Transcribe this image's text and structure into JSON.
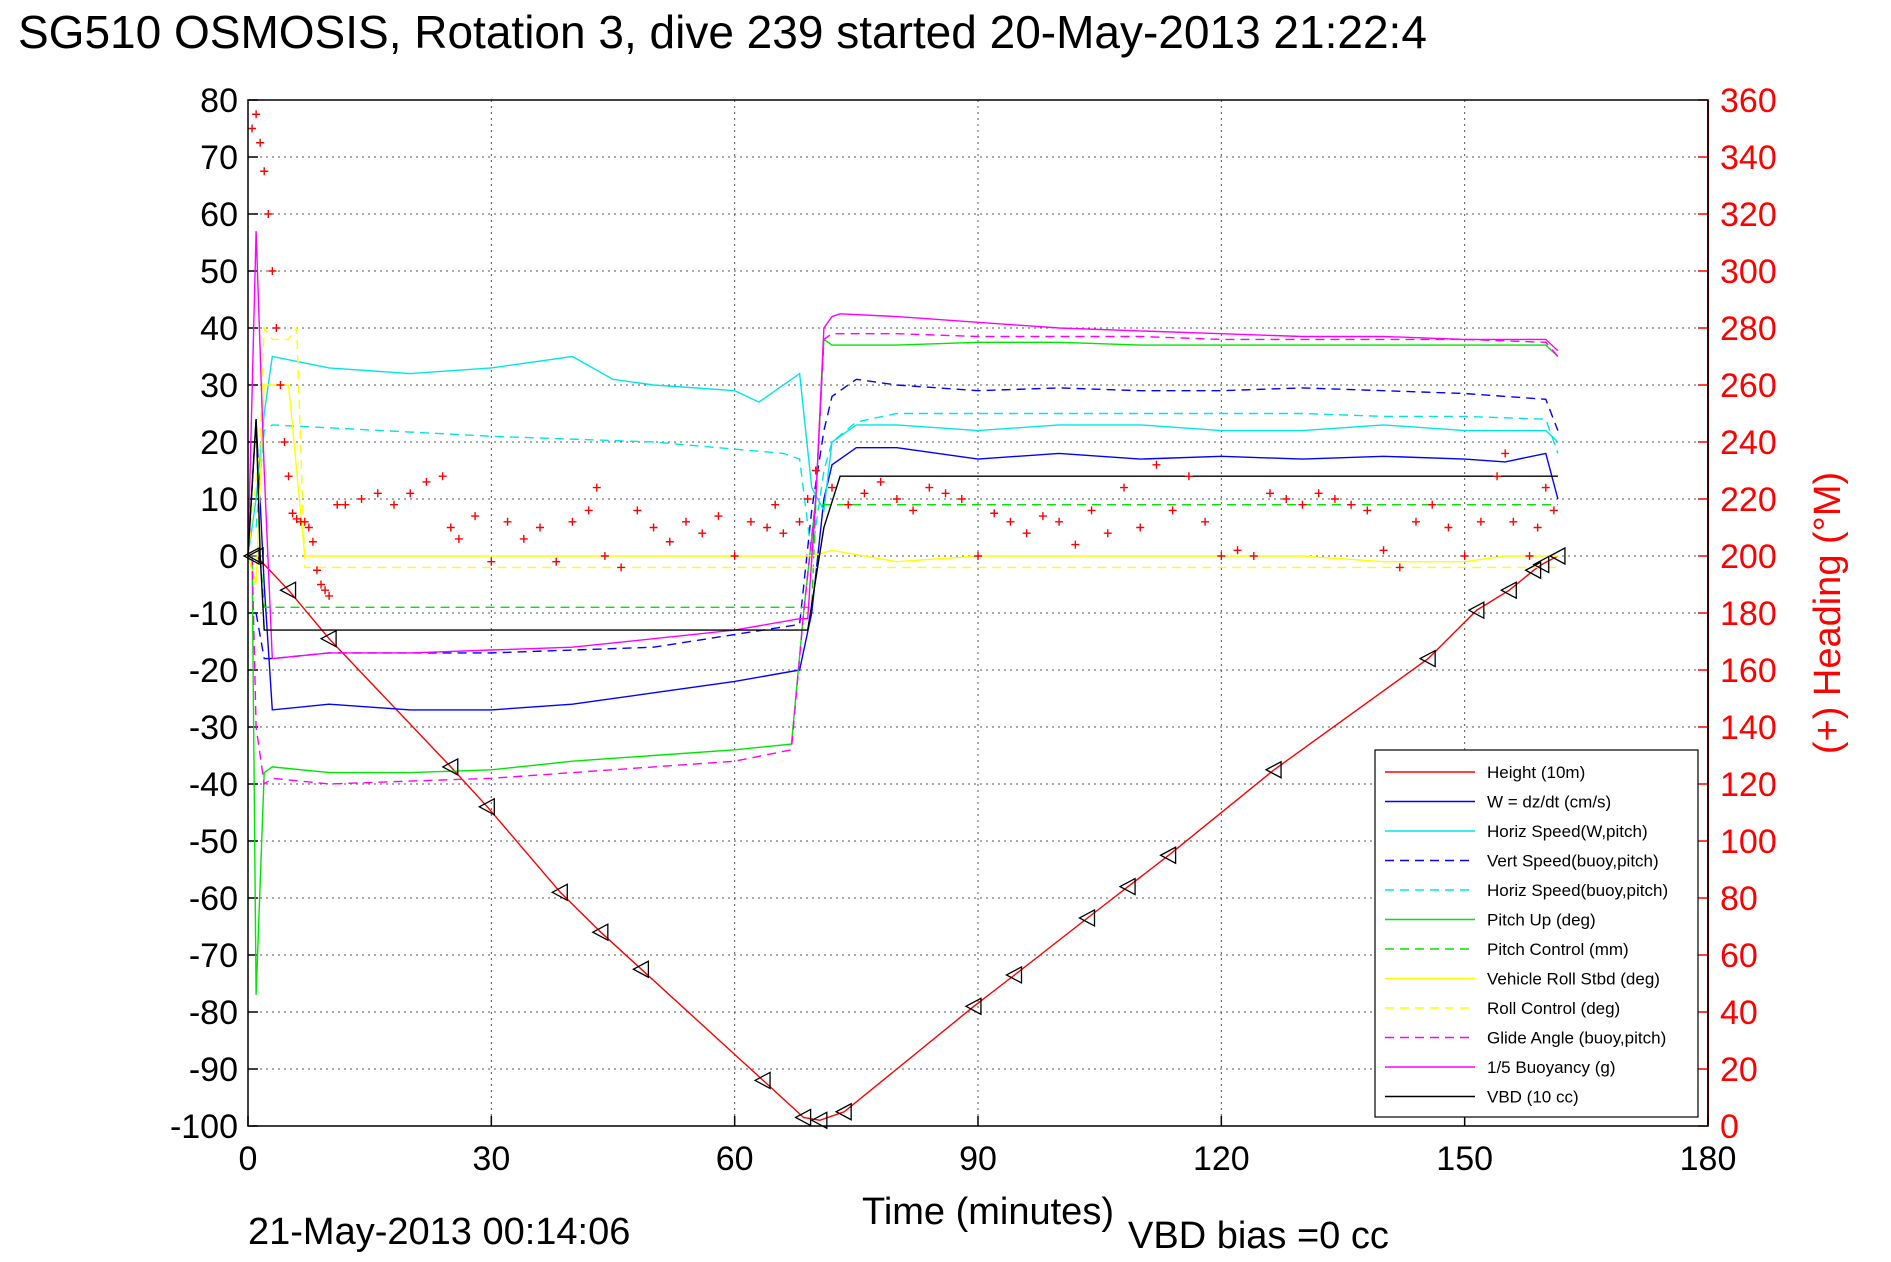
{
  "title": "SG510 OSMOSIS, Rotation 3, dive 239 started 20-May-2013 21:22:4",
  "footer_timestamp": "21-May-2013 00:14:06",
  "vbd_bias": "VBD bias =0 cc",
  "chart_data": {
    "type": "line",
    "title": "SG510 OSMOSIS, Rotation 3, dive 239 started 20-May-2013 21:22:4",
    "xlabel": "Time (minutes)",
    "ylabel": "",
    "y2label": "(+) Heading (°M)",
    "xlim": [
      0,
      180
    ],
    "ylim": [
      -100,
      80
    ],
    "y2lim": [
      0,
      360
    ],
    "x_ticks": [
      0,
      30,
      60,
      90,
      120,
      150,
      180
    ],
    "x_tick_labels": [
      "0",
      "30",
      "60",
      "90",
      "120",
      "150",
      "180"
    ],
    "y_ticks": [
      80,
      70,
      60,
      50,
      40,
      30,
      20,
      10,
      0,
      -10,
      -20,
      -30,
      -40,
      -50,
      -60,
      -70,
      -80,
      -90,
      -100
    ],
    "y_tick_labels": [
      "80",
      "70",
      "60",
      "50",
      "40",
      "30",
      "20",
      "10",
      "0",
      "-10",
      "-20",
      "-30",
      "-40",
      "-50",
      "-60",
      "-70",
      "-80",
      "-90",
      "-100"
    ],
    "y2_ticks": [
      360,
      340,
      320,
      300,
      280,
      260,
      240,
      220,
      200,
      180,
      160,
      140,
      120,
      100,
      80,
      60,
      40,
      20,
      0
    ],
    "y2_tick_labels": [
      "360",
      "340",
      "320",
      "300",
      "280",
      "260",
      "240",
      "220",
      "200",
      "180",
      "160",
      "140",
      "120",
      "100",
      "80",
      "60",
      "40",
      "20",
      "0"
    ],
    "grid": true,
    "legend_position": "bottom-right",
    "series": [
      {
        "name": "Height (10m)",
        "color": "#ff0000",
        "dash": "solid",
        "x": [
          0.5,
          1,
          5,
          10,
          25,
          29.5,
          38.5,
          43.5,
          48.5,
          63.5,
          68.5,
          70.5,
          73.5,
          89.5,
          94.5,
          103.5,
          108.5,
          113.5,
          126.5,
          145.5,
          151.5,
          155.5,
          158.5,
          159.5,
          161.5
        ],
        "y": [
          0,
          0,
          -6,
          -14.5,
          -37,
          -44,
          -59,
          -66,
          -72.5,
          -92,
          -98.5,
          -99,
          -97.5,
          -79,
          -73.5,
          -63.5,
          -58,
          -52.5,
          -37.5,
          -18,
          -9.5,
          -6,
          -2.5,
          -1.5,
          0
        ]
      },
      {
        "name": "W = dz/dt (cm/s)",
        "color": "#0000ff",
        "dash": "solid",
        "x": [
          0,
          1,
          2,
          3,
          10,
          20,
          30,
          40,
          50,
          60,
          68,
          69.5,
          71,
          72,
          75,
          80,
          90,
          100,
          110,
          120,
          130,
          140,
          150,
          155,
          160,
          161.5
        ],
        "y": [
          0,
          24,
          -5,
          -27,
          -26,
          -27,
          -27,
          -26,
          -24,
          -22,
          -20,
          -10,
          10,
          16,
          19,
          19,
          17,
          18,
          17,
          17.5,
          17,
          17.5,
          17,
          16.5,
          18,
          10
        ]
      },
      {
        "name": "Horiz Speed(W,pitch)",
        "color": "#00e6e6",
        "dash": "solid",
        "x": [
          0,
          1,
          2,
          3,
          10,
          20,
          30,
          40,
          45,
          50,
          60,
          63,
          68,
          69.5,
          71,
          72,
          75,
          80,
          90,
          100,
          110,
          120,
          130,
          140,
          150,
          155,
          160,
          161.5
        ],
        "y": [
          0,
          10,
          25,
          35,
          33,
          32,
          33,
          35,
          31,
          30,
          29,
          27,
          32,
          12,
          8,
          20,
          23,
          23,
          22,
          23,
          23,
          22,
          22,
          23,
          22,
          22,
          22,
          20
        ]
      },
      {
        "name": "Vert Speed(buoy,pitch)",
        "color": "#0000ff",
        "dash": "dashed",
        "x": [
          1,
          2,
          3,
          10,
          30,
          50,
          68,
          69.5,
          71,
          72,
          75,
          80,
          90,
          100,
          110,
          120,
          130,
          140,
          150,
          160,
          161.5
        ],
        "y": [
          -10,
          -18,
          -18,
          -17,
          -17,
          -16,
          -12,
          8,
          22,
          28,
          31,
          30,
          29,
          29.5,
          29,
          29,
          29.5,
          29,
          28.5,
          27.5,
          22
        ]
      },
      {
        "name": "Horiz Speed(buoy,pitch)",
        "color": "#00e6e6",
        "dash": "dashed",
        "x": [
          1,
          2,
          3,
          10,
          30,
          50,
          66,
          68,
          69.5,
          71,
          72,
          75,
          80,
          90,
          100,
          110,
          120,
          130,
          140,
          150,
          160,
          161.5
        ],
        "y": [
          5,
          22,
          23,
          22.5,
          21,
          20,
          18,
          17,
          0,
          15,
          20,
          23.5,
          25,
          25,
          25,
          25,
          25,
          25,
          24.5,
          24.5,
          24,
          18
        ]
      },
      {
        "name": "Pitch Up (deg)",
        "color": "#00e600",
        "dash": "solid",
        "x": [
          0.5,
          1,
          2,
          3,
          10,
          20,
          30,
          40,
          50,
          60,
          67,
          68.5,
          70,
          71,
          72,
          75,
          80,
          90,
          100,
          110,
          120,
          130,
          140,
          150,
          155,
          160,
          161.5
        ],
        "y": [
          0,
          -77,
          -38,
          -37,
          -38,
          -38,
          -37.5,
          -36,
          -35,
          -34,
          -33,
          -10,
          10,
          38,
          37,
          37,
          37,
          37.5,
          37.5,
          37,
          37,
          37,
          37,
          37,
          37,
          37,
          35
        ]
      },
      {
        "name": "Pitch Control (mm)",
        "color": "#00e600",
        "dash": "dashed",
        "x": [
          0,
          1.5,
          2,
          69.5,
          70,
          161.5
        ],
        "y": [
          0,
          0,
          -9,
          -9,
          9,
          9
        ]
      },
      {
        "name": "Vehicle Roll Stbd (deg)",
        "color": "#ffff00",
        "dash": "solid",
        "x": [
          0,
          1,
          2,
          3,
          5,
          7,
          10,
          30,
          50,
          69.5,
          72,
          80,
          90,
          100,
          110,
          120,
          130,
          140,
          150,
          155,
          160,
          161.5
        ],
        "y": [
          0,
          -5,
          30,
          30,
          30,
          0,
          0,
          0,
          0,
          0,
          1,
          -1,
          0,
          0,
          0,
          0,
          0,
          -1,
          -1,
          0,
          0,
          0
        ]
      },
      {
        "name": "Roll Control (deg)",
        "color": "#ffff00",
        "dash": "dashed",
        "x": [
          0,
          1.5,
          2,
          3,
          5,
          6,
          7,
          69.5,
          70,
          161.5
        ],
        "y": [
          0,
          20,
          40,
          38,
          38,
          40,
          -2,
          -2,
          -2,
          -2
        ]
      },
      {
        "name": "Glide Angle (buoy,pitch)",
        "color": "#ff00ff",
        "dash": "dashed",
        "x": [
          0.5,
          1,
          2,
          3,
          10,
          20,
          30,
          40,
          50,
          60,
          67,
          68.5,
          70,
          71,
          72,
          75,
          80,
          90,
          100,
          110,
          120,
          130,
          140,
          150,
          160,
          161.5
        ],
        "y": [
          0,
          -30,
          -40,
          -39,
          -40,
          -39.5,
          -39,
          -38,
          -37,
          -36,
          -34,
          -10,
          10,
          38,
          39,
          39,
          39,
          38.5,
          38.5,
          38.5,
          38,
          38,
          38,
          38,
          37.5,
          35
        ]
      },
      {
        "name": "1/5 Buoyancy (g)",
        "color": "#ff00ff",
        "dash": "solid",
        "x": [
          0,
          1,
          2,
          3,
          10,
          20,
          30,
          40,
          50,
          60,
          68,
          69,
          70,
          71,
          72,
          73,
          80,
          90,
          100,
          110,
          120,
          130,
          140,
          150,
          160,
          161.5
        ],
        "y": [
          0,
          57,
          15,
          -18,
          -17,
          -17,
          -16.5,
          -16,
          -14.5,
          -13,
          -11,
          -11,
          10,
          40,
          42,
          42.5,
          42,
          41,
          40,
          39.5,
          39,
          38.5,
          38.5,
          38,
          38,
          36
        ]
      },
      {
        "name": "VBD (10 cc)",
        "color": "#000000",
        "dash": "solid",
        "x": [
          0,
          1,
          1.5,
          2,
          68.5,
          69,
          71,
          73,
          161.5
        ],
        "y": [
          0,
          24,
          0,
          -13,
          -13,
          -13,
          5,
          14,
          14
        ]
      }
    ],
    "heading": {
      "name": "(+) Heading (°M)",
      "color": "#ff0000",
      "marker": "+",
      "x": [
        0.5,
        1,
        1.5,
        2,
        2.5,
        3,
        3.5,
        4,
        4.5,
        5,
        5.5,
        6,
        6.5,
        7,
        7.5,
        8,
        8.5,
        9,
        9.5,
        10,
        11,
        12,
        14,
        16,
        18,
        20,
        22,
        24,
        25,
        26,
        28,
        30,
        32,
        34,
        36,
        38,
        40,
        42,
        43,
        44,
        46,
        48,
        50,
        52,
        54,
        56,
        58,
        60,
        62,
        64,
        65,
        66,
        68,
        69,
        70,
        72,
        74,
        76,
        78,
        80,
        82,
        84,
        86,
        88,
        90,
        92,
        94,
        96,
        98,
        100,
        102,
        104,
        106,
        108,
        110,
        112,
        114,
        116,
        118,
        120,
        122,
        124,
        126,
        128,
        130,
        132,
        134,
        136,
        138,
        140,
        142,
        144,
        146,
        148,
        150,
        152,
        154,
        155,
        156,
        158,
        159,
        160,
        161
      ],
      "y": [
        350,
        355,
        345,
        335,
        320,
        300,
        280,
        260,
        240,
        228,
        215,
        213,
        212,
        212,
        210,
        205,
        195,
        190,
        188,
        186,
        218,
        218,
        220,
        222,
        218,
        222,
        226,
        228,
        210,
        206,
        214,
        198,
        212,
        206,
        210,
        198,
        212,
        216,
        224,
        200,
        196,
        216,
        210,
        205,
        212,
        208,
        214,
        200,
        212,
        210,
        218,
        208,
        212,
        220,
        230,
        224,
        218,
        222,
        226,
        220,
        216,
        224,
        222,
        220,
        200,
        215,
        212,
        208,
        214,
        212,
        204,
        216,
        208,
        224,
        210,
        232,
        216,
        228,
        212,
        200,
        202,
        200,
        222,
        220,
        218,
        222,
        220,
        218,
        216,
        202,
        196,
        212,
        218,
        210,
        200,
        212,
        228,
        236,
        212,
        200,
        210,
        224,
        216
      ]
    }
  }
}
